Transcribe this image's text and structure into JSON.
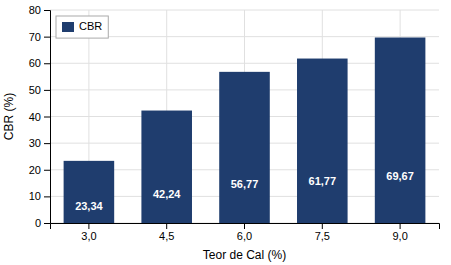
{
  "chart_data": {
    "type": "bar",
    "xlabel": "Teor de Cal (%)",
    "ylabel": "CBR (%)",
    "categories": [
      "3,0",
      "4,5",
      "6,0",
      "7,5",
      "9,0"
    ],
    "series": [
      {
        "name": "CBR",
        "color": "#1F3D6E",
        "values": [
          23.34,
          42.24,
          56.77,
          61.77,
          69.67
        ],
        "value_labels": [
          "23,34",
          "42,24",
          "56,77",
          "61,77",
          "69,67"
        ]
      }
    ],
    "ylim": [
      0,
      80
    ],
    "yticks": [
      0,
      10,
      20,
      30,
      40,
      50,
      60,
      70,
      80
    ],
    "grid": true,
    "legend": "upper-left",
    "data_labels": true
  }
}
